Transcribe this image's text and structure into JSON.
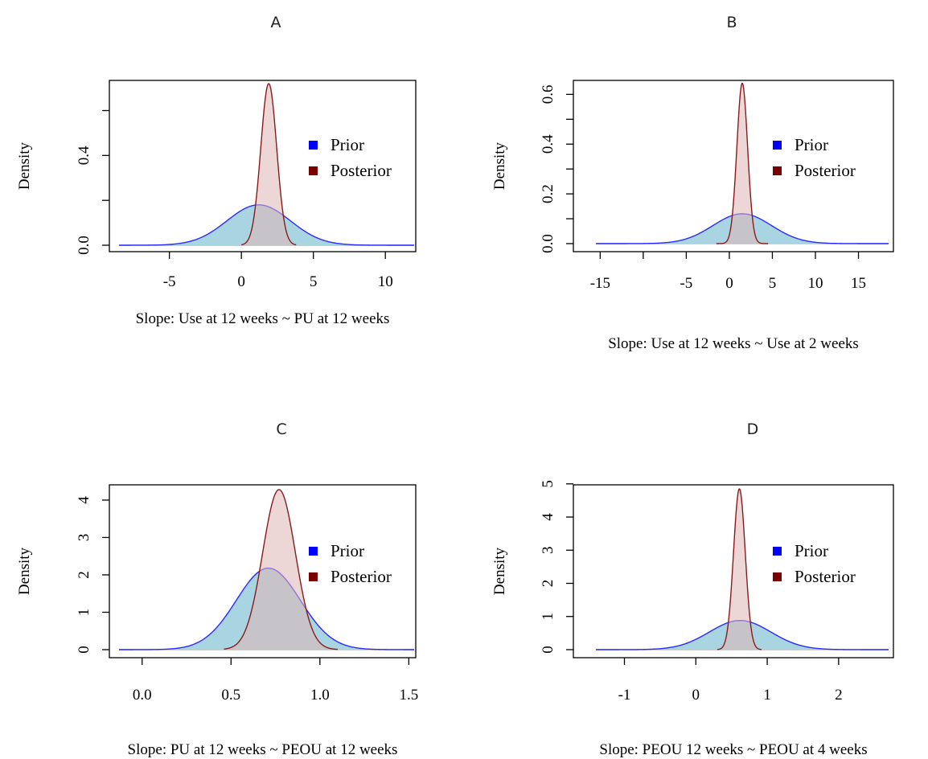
{
  "chart_data": [
    {
      "type": "area",
      "panel": "A",
      "xlabel": "Slope: Use at 12 weeks ~ PU at 12 weeks",
      "ylabel": "Density",
      "xlim": [
        -8.5,
        12
      ],
      "ylim": [
        0,
        0.72
      ],
      "xticks": [
        -5,
        0,
        5,
        10
      ],
      "xtick_labels": [
        "-5",
        "0",
        "5",
        "10"
      ],
      "yticks": [
        0,
        0.2,
        0.4,
        0.6
      ],
      "ytick_labels": [
        "0.0",
        "",
        "0.4",
        ""
      ],
      "grid": false,
      "legend_position": "right",
      "series": [
        {
          "name": "Prior",
          "distribution": "normal",
          "mean": 1.2,
          "sd": 2.2,
          "peak": 0.18,
          "x_range": [
            -8.5,
            12
          ]
        },
        {
          "name": "Posterior",
          "distribution": "normal",
          "mean": 1.9,
          "sd": 0.55,
          "peak": 0.72,
          "x_range": [
            0,
            3.8
          ]
        }
      ]
    },
    {
      "type": "area",
      "panel": "B",
      "xlabel": "Slope: Use at 12 weeks ~ Use at 2 weeks",
      "ylabel": "Density",
      "xlim": [
        -15.5,
        18.5
      ],
      "ylim": [
        0,
        0.64
      ],
      "xticks": [
        -15,
        -10,
        -5,
        0,
        5,
        10,
        15
      ],
      "xtick_labels": [
        "-15",
        "",
        "-5",
        "0",
        "5",
        "10",
        "15"
      ],
      "yticks": [
        0,
        0.1,
        0.2,
        0.3,
        0.4,
        0.5,
        0.6
      ],
      "ytick_labels": [
        "0.0",
        "",
        "0.2",
        "",
        "0.4",
        "",
        "0.6"
      ],
      "grid": false,
      "legend_position": "right",
      "series": [
        {
          "name": "Prior",
          "distribution": "normal",
          "mean": 1.5,
          "sd": 3.4,
          "peak": 0.12,
          "x_range": [
            -15.5,
            18.5
          ]
        },
        {
          "name": "Posterior",
          "distribution": "normal",
          "mean": 1.5,
          "sd": 0.62,
          "peak": 0.645,
          "x_range": [
            -1.5,
            4.5
          ]
        }
      ]
    },
    {
      "type": "area",
      "panel": "C",
      "xlabel": "Slope: PU at 12 weeks ~ PEOU at 12 weeks",
      "ylabel": "Density",
      "xlim": [
        -0.13,
        1.53
      ],
      "ylim": [
        0,
        4.3
      ],
      "xticks": [
        0.0,
        0.5,
        1.0,
        1.5
      ],
      "xtick_labels": [
        "0.0",
        "0.5",
        "1.0",
        "1.5"
      ],
      "yticks": [
        0,
        1,
        2,
        3,
        4
      ],
      "ytick_labels": [
        "0",
        "1",
        "2",
        "3",
        "4"
      ],
      "grid": false,
      "legend_position": "right",
      "series": [
        {
          "name": "Prior",
          "distribution": "normal",
          "mean": 0.71,
          "sd": 0.18,
          "peak": 2.18,
          "x_range": [
            -0.13,
            1.53
          ]
        },
        {
          "name": "Posterior",
          "distribution": "normal",
          "mean": 0.77,
          "sd": 0.092,
          "peak": 4.28,
          "x_range": [
            0.46,
            1.1
          ]
        }
      ]
    },
    {
      "type": "area",
      "panel": "D",
      "xlabel": "Slope: PEOU 12 weeks ~ PEOU at 4 weeks",
      "ylabel": "Density",
      "xlim": [
        -1.4,
        2.7
      ],
      "ylim": [
        0,
        4.85
      ],
      "xticks": [
        -1,
        0,
        1,
        2
      ],
      "xtick_labels": [
        "-1",
        "0",
        "1",
        "2"
      ],
      "yticks": [
        0,
        1,
        2,
        3,
        4,
        5
      ],
      "ytick_labels": [
        "0",
        "1",
        "2",
        "3",
        "4",
        "5"
      ],
      "grid": false,
      "legend_position": "right",
      "series": [
        {
          "name": "Prior",
          "distribution": "normal",
          "mean": 0.62,
          "sd": 0.43,
          "peak": 0.88,
          "x_range": [
            -1.4,
            2.7
          ]
        },
        {
          "name": "Posterior",
          "distribution": "normal",
          "mean": 0.61,
          "sd": 0.082,
          "peak": 4.85,
          "x_range": [
            0.3,
            0.92
          ]
        }
      ]
    }
  ],
  "panels": [
    {
      "title": "A",
      "legend": [
        "Prior",
        "Posterior"
      ]
    },
    {
      "title": "B",
      "legend": [
        "Prior",
        "Posterior"
      ]
    },
    {
      "title": "C",
      "legend": [
        "Prior",
        "Posterior"
      ]
    },
    {
      "title": "D",
      "legend": [
        "Prior",
        "Posterior"
      ]
    }
  ],
  "colors": {
    "prior_line": "#2a2aff",
    "prior_fill": "#a9d5e3",
    "posterior_line": "#8b1a1a",
    "posterior_fill": "rgba(222,180,180,0.55)",
    "legend_prior": "#0000ff",
    "legend_posterior": "#7a0000",
    "baseline": "#bbbbbb"
  }
}
